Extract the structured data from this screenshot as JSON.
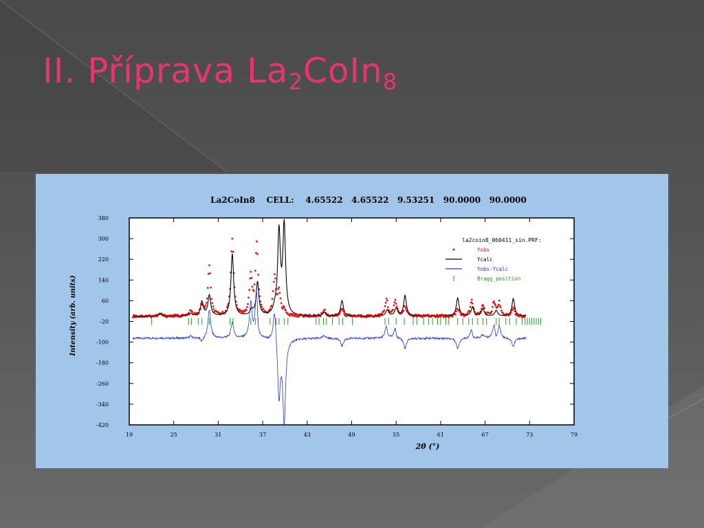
{
  "slide": {
    "title_main": "II. Příprava La",
    "title_sub1": "2",
    "title_mid": "CoIn",
    "title_sub2": "8"
  },
  "chart_data": {
    "type": "line",
    "title": "La2CoIn8    CELL:    4.65522   4.65522   9.53251   90.0000   90.0000",
    "xlabel": "2θ (°)",
    "ylabel": "Intensity (arb. units)",
    "xlim": [
      19,
      79
    ],
    "ylim": [
      -420,
      380
    ],
    "xticks": [
      19,
      25,
      31,
      37,
      43,
      49,
      55,
      61,
      67,
      73,
      79
    ],
    "yticks": [
      380,
      300,
      220,
      140,
      60,
      -20,
      -100,
      -180,
      -260,
      -340,
      -420
    ],
    "legend_title": "la2coin8_060411_sin.PRF:",
    "legend_position": "top-right",
    "baseline": 0,
    "diff_offset": -85,
    "x_range_data": [
      19.5,
      72.5
    ],
    "series": [
      {
        "name": "Yobs",
        "color": "#ee1111",
        "style": "markers"
      },
      {
        "name": "Ycalc",
        "color": "#000000",
        "style": "line"
      },
      {
        "name": "Yobs-Ycalc",
        "color": "#2233dd",
        "style": "line"
      },
      {
        "name": "Bragg_position",
        "color": "#1f9a1f",
        "style": "ticks"
      }
    ],
    "calc_peaks": [
      {
        "x": 23.2,
        "h": 8
      },
      {
        "x": 27.3,
        "h": 10
      },
      {
        "x": 28.8,
        "h": 55
      },
      {
        "x": 29.8,
        "h": 80
      },
      {
        "x": 32.9,
        "h": 240
      },
      {
        "x": 35.5,
        "h": 22
      },
      {
        "x": 36.3,
        "h": 130
      },
      {
        "x": 38.6,
        "h": 18
      },
      {
        "x": 39.2,
        "h": 320
      },
      {
        "x": 39.9,
        "h": 345
      },
      {
        "x": 45.3,
        "h": 14
      },
      {
        "x": 47.7,
        "h": 60
      },
      {
        "x": 53.8,
        "h": 24
      },
      {
        "x": 55.0,
        "h": 30
      },
      {
        "x": 56.2,
        "h": 80
      },
      {
        "x": 63.3,
        "h": 70
      },
      {
        "x": 65.3,
        "h": 35
      },
      {
        "x": 66.7,
        "h": 28
      },
      {
        "x": 68.5,
        "h": 22
      },
      {
        "x": 70.8,
        "h": 68
      }
    ],
    "obs_peaks": [
      {
        "x": 23.2,
        "h": 10
      },
      {
        "x": 27.3,
        "h": 18
      },
      {
        "x": 28.8,
        "h": 40
      },
      {
        "x": 29.8,
        "h": 190
      },
      {
        "x": 32.9,
        "h": 300
      },
      {
        "x": 35.4,
        "h": 150
      },
      {
        "x": 36.2,
        "h": 275
      },
      {
        "x": 38.6,
        "h": 150
      },
      {
        "x": 39.2,
        "h": 90
      },
      {
        "x": 39.9,
        "h": 20
      },
      {
        "x": 45.3,
        "h": 25
      },
      {
        "x": 47.7,
        "h": 30
      },
      {
        "x": 53.7,
        "h": 65
      },
      {
        "x": 54.9,
        "h": 60
      },
      {
        "x": 56.2,
        "h": 40
      },
      {
        "x": 63.3,
        "h": 30
      },
      {
        "x": 65.2,
        "h": 60
      },
      {
        "x": 66.7,
        "h": 40
      },
      {
        "x": 68.2,
        "h": 55
      },
      {
        "x": 68.9,
        "h": 50
      },
      {
        "x": 70.8,
        "h": 35
      }
    ],
    "bragg_positions": [
      22.0,
      27.0,
      27.4,
      28.3,
      28.8,
      29.8,
      32.6,
      33.0,
      35.4,
      36.0,
      36.4,
      38.0,
      38.8,
      39.2,
      39.9,
      40.4,
      44.2,
      44.6,
      45.2,
      45.6,
      46.4,
      47.3,
      47.8,
      49.1,
      53.5,
      54.0,
      55.0,
      56.1,
      57.3,
      57.8,
      58.7,
      59.4,
      59.9,
      60.6,
      61.0,
      61.7,
      62.1,
      63.3,
      64.0,
      64.8,
      65.3,
      66.0,
      66.7,
      67.2,
      68.5,
      68.9,
      69.8,
      70.3,
      71.2,
      72.0,
      72.4,
      72.7,
      73.0,
      73.3,
      73.6,
      73.9,
      74.2,
      74.5
    ]
  }
}
